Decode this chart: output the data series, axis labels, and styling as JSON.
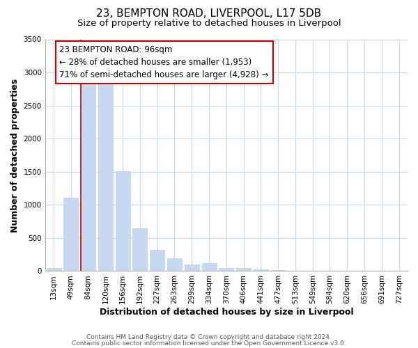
{
  "title": "23, BEMPTON ROAD, LIVERPOOL, L17 5DB",
  "subtitle": "Size of property relative to detached houses in Liverpool",
  "xlabel": "Distribution of detached houses by size in Liverpool",
  "ylabel": "Number of detached properties",
  "bar_labels": [
    "13sqm",
    "49sqm",
    "84sqm",
    "120sqm",
    "156sqm",
    "192sqm",
    "227sqm",
    "263sqm",
    "299sqm",
    "334sqm",
    "370sqm",
    "406sqm",
    "441sqm",
    "477sqm",
    "513sqm",
    "549sqm",
    "584sqm",
    "620sqm",
    "656sqm",
    "691sqm",
    "727sqm"
  ],
  "bar_values": [
    50,
    1110,
    2930,
    2930,
    1510,
    645,
    325,
    195,
    95,
    120,
    50,
    50,
    25,
    20,
    0,
    0,
    0,
    0,
    0,
    0,
    0
  ],
  "bar_color": "#c6d9f0",
  "bar_edge_color": "#b0c8e8",
  "vline_x": 2.0,
  "vline_color": "#cc0000",
  "ylim": [
    0,
    3500
  ],
  "yticks": [
    0,
    500,
    1000,
    1500,
    2000,
    2500,
    3000,
    3500
  ],
  "annotation_line1": "23 BEMPTON ROAD: 96sqm",
  "annotation_line2": "← 28% of detached houses are smaller (1,953)",
  "annotation_line3": "71% of semi-detached houses are larger (4,928) →",
  "footer_line1": "Contains HM Land Registry data © Crown copyright and database right 2024.",
  "footer_line2": "Contains public sector information licensed under the Open Government Licence v3.0.",
  "background_color": "#ffffff",
  "grid_color": "#c8d8e8",
  "title_fontsize": 11,
  "subtitle_fontsize": 9.5,
  "axis_label_fontsize": 9,
  "tick_fontsize": 7.5,
  "annotation_fontsize": 8.5,
  "footer_fontsize": 6.5
}
